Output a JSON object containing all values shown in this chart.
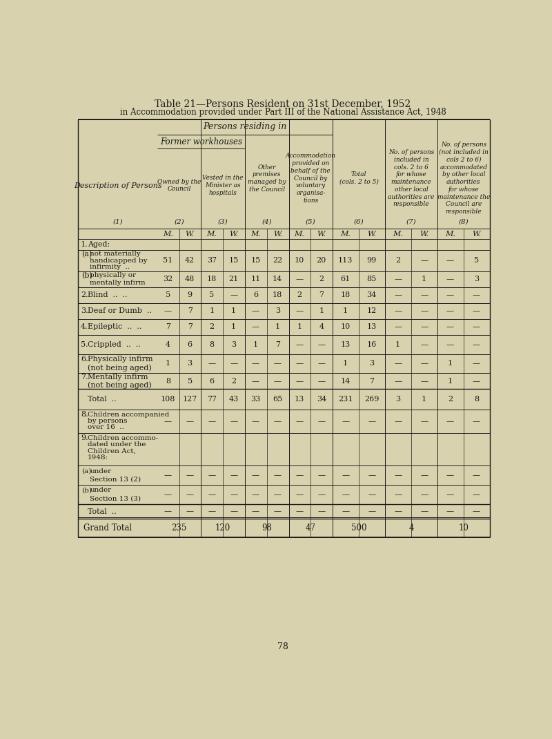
{
  "title1": "Table 21—Persons Resident on 31st December, 1952",
  "title2": "in Accommodation provided under Part III of the National Assistance Act, 1948",
  "bg_color": "#d8d3ae",
  "text_color": "#1a1a1a",
  "page_number": "78",
  "data": {
    "1a": [
      "51",
      "42",
      "37",
      "15",
      "15",
      "22",
      "10",
      "20",
      "113",
      "99",
      "2",
      "—",
      "—",
      "5"
    ],
    "1b": [
      "32",
      "48",
      "18",
      "21",
      "11",
      "14",
      "—",
      "2",
      "61",
      "85",
      "—",
      "1",
      "—",
      "3"
    ],
    "2": [
      "5",
      "9",
      "5",
      "—",
      "6",
      "18",
      "2",
      "7",
      "18",
      "34",
      "—",
      "—",
      "—",
      "—"
    ],
    "3": [
      "—",
      "7",
      "1",
      "1",
      "—",
      "3",
      "—",
      "1",
      "1",
      "12",
      "—",
      "—",
      "—",
      "—"
    ],
    "4": [
      "7",
      "7",
      "2",
      "1",
      "—",
      "1",
      "1",
      "4",
      "10",
      "13",
      "—",
      "—",
      "—",
      "—"
    ],
    "5": [
      "4",
      "6",
      "8",
      "3",
      "1",
      "7",
      "—",
      "—",
      "13",
      "16",
      "1",
      "—",
      "—",
      "—"
    ],
    "6": [
      "1",
      "3",
      "—",
      "—",
      "—",
      "—",
      "—",
      "—",
      "1",
      "3",
      "—",
      "—",
      "1",
      "—"
    ],
    "7": [
      "8",
      "5",
      "6",
      "2",
      "—",
      "—",
      "—",
      "—",
      "14",
      "7",
      "—",
      "—",
      "1",
      "—"
    ],
    "tot": [
      "108",
      "127",
      "77",
      "43",
      "33",
      "65",
      "13",
      "34",
      "231",
      "269",
      "3",
      "1",
      "2",
      "8"
    ],
    "8": [
      "—",
      "—",
      "—",
      "—",
      "—",
      "—",
      "—",
      "—",
      "—",
      "—",
      "—",
      "—",
      "—",
      "—"
    ],
    "9a": [
      "—",
      "—",
      "—",
      "—",
      "—",
      "—",
      "—",
      "—",
      "—",
      "—",
      "—",
      "—",
      "—",
      "—"
    ],
    "9b": [
      "—",
      "—",
      "—",
      "—",
      "—",
      "—",
      "—",
      "—",
      "—",
      "—",
      "—",
      "—",
      "—",
      "—"
    ],
    "9t": [
      "—",
      "—",
      "—",
      "—",
      "—",
      "—",
      "—",
      "—",
      "—",
      "—",
      "—",
      "—",
      "—",
      "—"
    ],
    "gt": [
      "235",
      "",
      "120",
      "",
      "98",
      "",
      "47",
      "",
      "500",
      "",
      "4",
      "",
      "10",
      ""
    ]
  }
}
